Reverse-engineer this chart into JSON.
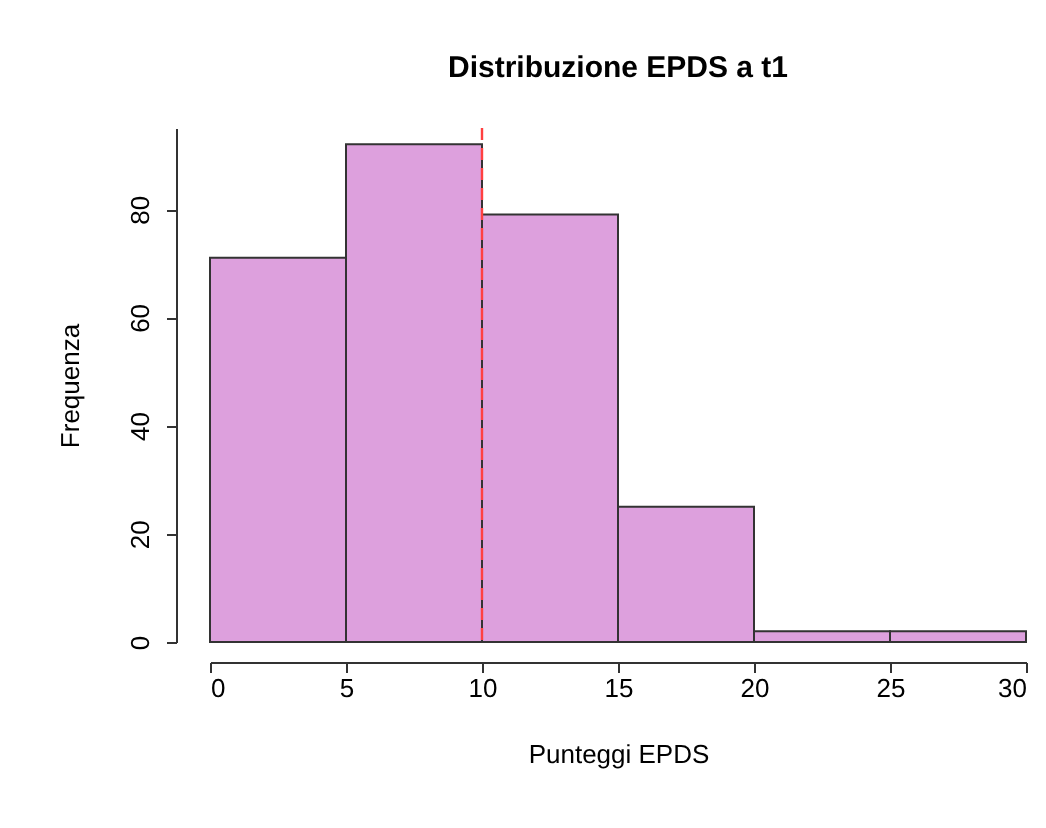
{
  "chart_data": {
    "type": "histogram",
    "title": "Distribuzione EPDS a t1",
    "xlabel": "Punteggi EPDS",
    "ylabel": "Frequenza",
    "bins": [
      0,
      5,
      10,
      15,
      20,
      25,
      30
    ],
    "values": [
      71,
      92,
      79,
      25,
      2,
      2
    ],
    "color": "#dda0dd",
    "xlim": [
      0,
      30
    ],
    "xticks": [
      0,
      5,
      10,
      15,
      20,
      25,
      30
    ],
    "ylim": [
      0,
      95
    ],
    "yticks": [
      0,
      20,
      40,
      60,
      80
    ],
    "grid": false,
    "ref_lines": [
      {
        "axis": "x",
        "value": 10,
        "color": "#ff4040",
        "line_style": "dashed"
      }
    ]
  }
}
